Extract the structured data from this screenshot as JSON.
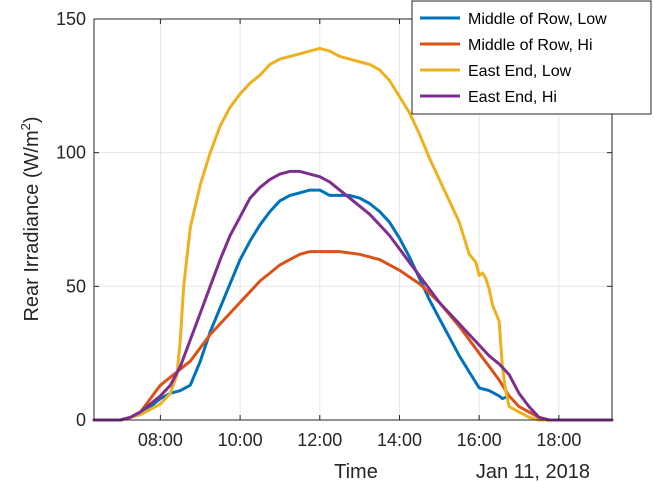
{
  "chart_data": {
    "type": "line",
    "xlabel": "Time",
    "ylabel_main": "Rear Irradiance (W/m",
    "ylabel_sup": "2",
    "ylabel_close": ")",
    "date_label": "Jan 11, 2018",
    "x_ticks": [
      "08:00",
      "10:00",
      "12:00",
      "14:00",
      "16:00",
      "18:00"
    ],
    "y_ticks": [
      "0",
      "50",
      "100",
      "150"
    ],
    "xlim": [
      "06:20",
      "19:20"
    ],
    "ylim": [
      0,
      150
    ],
    "grid": true,
    "legend_position": "top-right",
    "series": [
      {
        "name": "Middle of Row, Low",
        "color": "#0072BD",
        "points": [
          [
            "06:20",
            0
          ],
          [
            "07:00",
            0
          ],
          [
            "07:15",
            1
          ],
          [
            "07:30",
            3
          ],
          [
            "07:45",
            5
          ],
          [
            "08:00",
            8
          ],
          [
            "08:15",
            10
          ],
          [
            "08:30",
            11
          ],
          [
            "08:45",
            13
          ],
          [
            "09:00",
            22
          ],
          [
            "09:15",
            33
          ],
          [
            "09:30",
            42
          ],
          [
            "09:45",
            51
          ],
          [
            "10:00",
            60
          ],
          [
            "10:15",
            67
          ],
          [
            "10:30",
            73
          ],
          [
            "10:45",
            78
          ],
          [
            "11:00",
            82
          ],
          [
            "11:15",
            84
          ],
          [
            "11:30",
            85
          ],
          [
            "11:45",
            86
          ],
          [
            "12:00",
            86
          ],
          [
            "12:15",
            84
          ],
          [
            "12:30",
            84
          ],
          [
            "12:45",
            84
          ],
          [
            "13:00",
            83
          ],
          [
            "13:15",
            81
          ],
          [
            "13:30",
            78
          ],
          [
            "13:45",
            74
          ],
          [
            "14:00",
            68
          ],
          [
            "14:15",
            61
          ],
          [
            "14:30",
            53
          ],
          [
            "14:45",
            45
          ],
          [
            "15:00",
            38
          ],
          [
            "15:15",
            31
          ],
          [
            "15:30",
            24
          ],
          [
            "15:45",
            18
          ],
          [
            "16:00",
            12
          ],
          [
            "16:15",
            11
          ],
          [
            "16:30",
            9
          ],
          [
            "16:35",
            8
          ],
          [
            "16:45",
            9
          ]
        ]
      },
      {
        "name": "Middle of Row, Hi",
        "color": "#D95319",
        "points": [
          [
            "06:20",
            0
          ],
          [
            "07:00",
            0
          ],
          [
            "07:15",
            1
          ],
          [
            "07:30",
            3
          ],
          [
            "07:45",
            8
          ],
          [
            "08:00",
            13
          ],
          [
            "08:15",
            16
          ],
          [
            "08:30",
            19
          ],
          [
            "08:45",
            22
          ],
          [
            "09:00",
            27
          ],
          [
            "09:15",
            32
          ],
          [
            "09:30",
            36
          ],
          [
            "09:45",
            40
          ],
          [
            "10:00",
            44
          ],
          [
            "10:15",
            48
          ],
          [
            "10:30",
            52
          ],
          [
            "10:45",
            55
          ],
          [
            "11:00",
            58
          ],
          [
            "11:15",
            60
          ],
          [
            "11:30",
            62
          ],
          [
            "11:45",
            63
          ],
          [
            "12:00",
            63
          ],
          [
            "12:30",
            63
          ],
          [
            "13:00",
            62
          ],
          [
            "13:30",
            60
          ],
          [
            "14:00",
            56
          ],
          [
            "14:30",
            51
          ],
          [
            "15:00",
            44
          ],
          [
            "15:30",
            35
          ],
          [
            "16:00",
            25
          ],
          [
            "16:30",
            15
          ],
          [
            "16:45",
            9
          ],
          [
            "17:00",
            5
          ],
          [
            "17:15",
            3
          ],
          [
            "17:30",
            1
          ],
          [
            "17:45",
            0
          ],
          [
            "19:20",
            0
          ]
        ]
      },
      {
        "name": "East End, Low",
        "color": "#EDB120",
        "points": [
          [
            "06:20",
            0
          ],
          [
            "07:00",
            0
          ],
          [
            "07:15",
            1
          ],
          [
            "07:30",
            2
          ],
          [
            "07:45",
            4
          ],
          [
            "08:00",
            6
          ],
          [
            "08:15",
            10
          ],
          [
            "08:25",
            17
          ],
          [
            "08:30",
            30
          ],
          [
            "08:35",
            50
          ],
          [
            "08:45",
            72
          ],
          [
            "09:00",
            88
          ],
          [
            "09:15",
            100
          ],
          [
            "09:30",
            110
          ],
          [
            "09:45",
            117
          ],
          [
            "10:00",
            122
          ],
          [
            "10:15",
            126
          ],
          [
            "10:30",
            129
          ],
          [
            "10:45",
            133
          ],
          [
            "11:00",
            135
          ],
          [
            "11:15",
            136
          ],
          [
            "11:30",
            137
          ],
          [
            "11:45",
            138
          ],
          [
            "12:00",
            139
          ],
          [
            "12:15",
            138
          ],
          [
            "12:30",
            136
          ],
          [
            "12:45",
            135
          ],
          [
            "13:00",
            134
          ],
          [
            "13:15",
            133
          ],
          [
            "13:30",
            131
          ],
          [
            "13:45",
            127
          ],
          [
            "14:00",
            121
          ],
          [
            "14:15",
            115
          ],
          [
            "14:30",
            107
          ],
          [
            "14:45",
            98
          ],
          [
            "15:00",
            90
          ],
          [
            "15:15",
            82
          ],
          [
            "15:30",
            74
          ],
          [
            "15:40",
            66
          ],
          [
            "15:45",
            62
          ],
          [
            "15:55",
            59
          ],
          [
            "16:00",
            54
          ],
          [
            "16:05",
            55
          ],
          [
            "16:10",
            53
          ],
          [
            "16:15",
            49
          ],
          [
            "16:20",
            43
          ],
          [
            "16:30",
            37
          ],
          [
            "16:35",
            20
          ],
          [
            "16:40",
            11
          ],
          [
            "16:45",
            5
          ],
          [
            "17:00",
            3
          ],
          [
            "17:15",
            1
          ],
          [
            "17:30",
            0
          ],
          [
            "19:20",
            0
          ]
        ]
      },
      {
        "name": "East End, Hi",
        "color": "#7E2F8E",
        "points": [
          [
            "06:20",
            0
          ],
          [
            "07:00",
            0
          ],
          [
            "07:15",
            1
          ],
          [
            "07:30",
            3
          ],
          [
            "07:45",
            6
          ],
          [
            "08:00",
            9
          ],
          [
            "08:15",
            13
          ],
          [
            "08:30",
            20
          ],
          [
            "08:45",
            30
          ],
          [
            "09:00",
            40
          ],
          [
            "09:15",
            50
          ],
          [
            "09:30",
            60
          ],
          [
            "09:45",
            69
          ],
          [
            "10:00",
            76
          ],
          [
            "10:15",
            83
          ],
          [
            "10:30",
            87
          ],
          [
            "10:45",
            90
          ],
          [
            "11:00",
            92
          ],
          [
            "11:15",
            93
          ],
          [
            "11:30",
            93
          ],
          [
            "11:45",
            92
          ],
          [
            "12:00",
            91
          ],
          [
            "12:15",
            89
          ],
          [
            "12:30",
            86
          ],
          [
            "12:45",
            83
          ],
          [
            "13:00",
            80
          ],
          [
            "13:15",
            77
          ],
          [
            "13:30",
            73
          ],
          [
            "13:45",
            69
          ],
          [
            "14:00",
            64
          ],
          [
            "14:15",
            59
          ],
          [
            "14:30",
            54
          ],
          [
            "14:45",
            49
          ],
          [
            "15:00",
            44
          ],
          [
            "15:15",
            40
          ],
          [
            "15:30",
            36
          ],
          [
            "15:45",
            32
          ],
          [
            "16:00",
            28
          ],
          [
            "16:15",
            24
          ],
          [
            "16:30",
            21
          ],
          [
            "16:45",
            17
          ],
          [
            "17:00",
            10
          ],
          [
            "17:15",
            5
          ],
          [
            "17:30",
            1
          ],
          [
            "17:45",
            0
          ],
          [
            "19:20",
            0
          ]
        ]
      }
    ]
  }
}
